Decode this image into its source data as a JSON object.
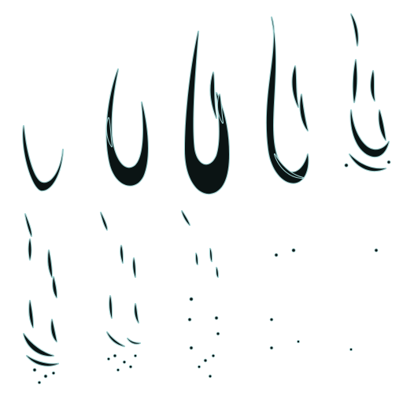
{
  "sprite_sheet": {
    "columns": 5,
    "rows": 2,
    "frame_count": 10,
    "background": "#ffffff",
    "ink_color": "#0b1414",
    "halo_color": "#9ecfcf",
    "frames": [
      {
        "index": 0,
        "stage": "small-crescent"
      },
      {
        "index": 1,
        "stage": "growing-flame"
      },
      {
        "index": 2,
        "stage": "full-flame"
      },
      {
        "index": 3,
        "stage": "flame-breaking"
      },
      {
        "index": 4,
        "stage": "flame-fragmenting"
      },
      {
        "index": 5,
        "stage": "fragments"
      },
      {
        "index": 6,
        "stage": "fading-fragments"
      },
      {
        "index": 7,
        "stage": "sparse-specks"
      },
      {
        "index": 8,
        "stage": "few-specks"
      },
      {
        "index": 9,
        "stage": "almost-gone"
      }
    ]
  }
}
